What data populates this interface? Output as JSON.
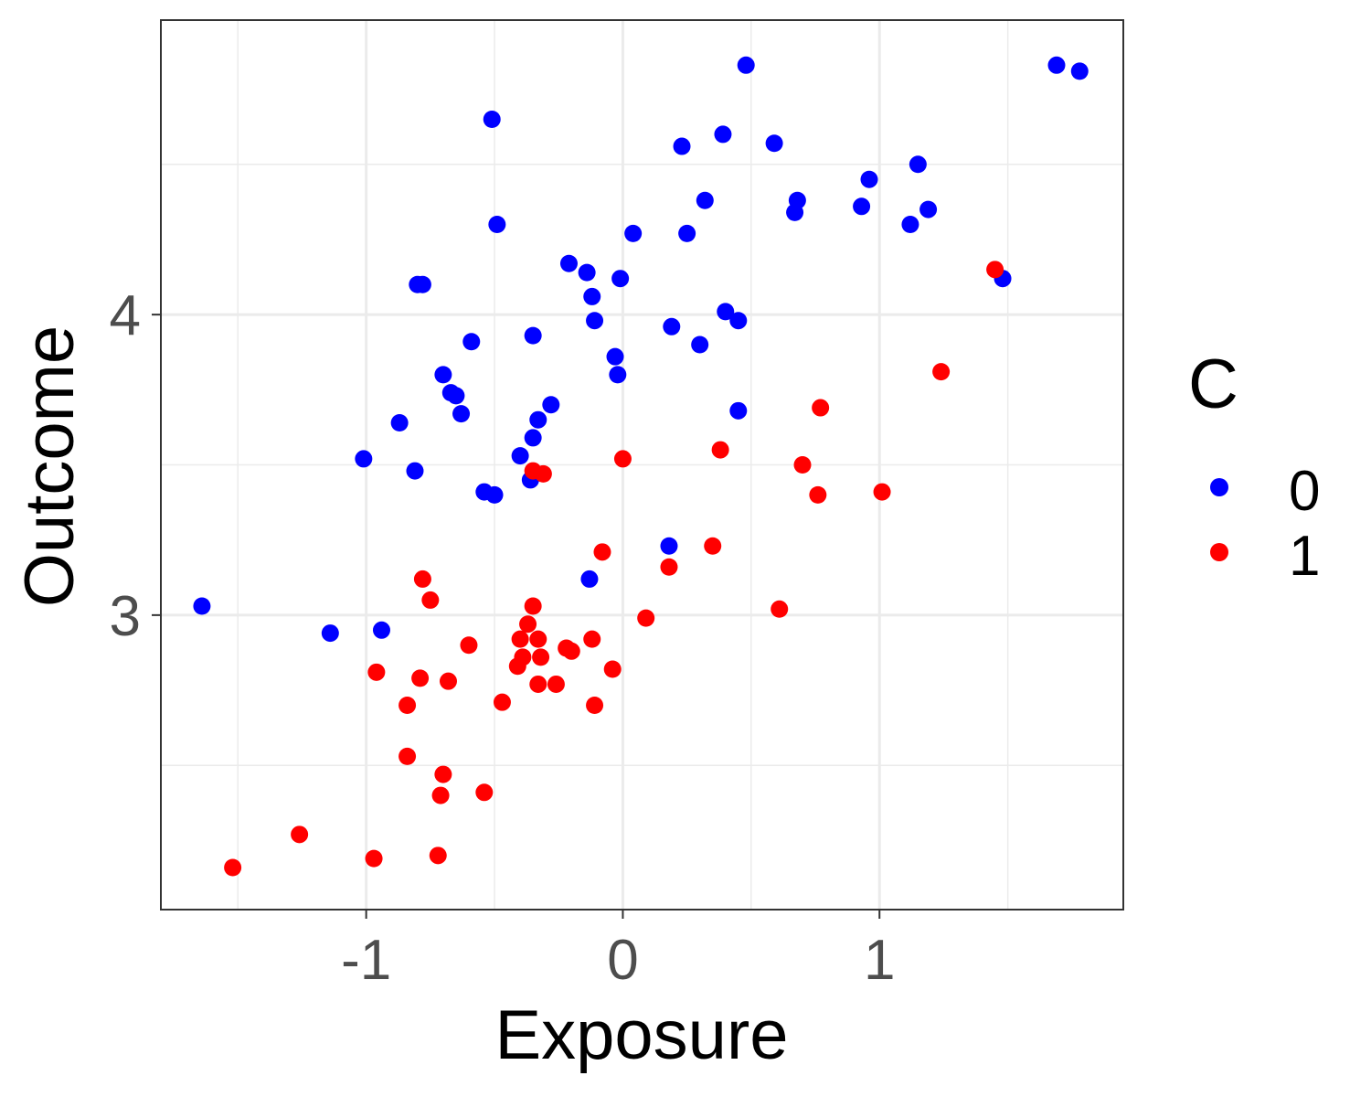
{
  "chart_data": {
    "type": "scatter",
    "xlabel": "Exposure",
    "ylabel": "Outcome",
    "xlim": [
      -1.8,
      1.95
    ],
    "ylim": [
      2.02,
      4.98
    ],
    "x_ticks": [
      -1,
      0,
      1
    ],
    "x_tick_labels": [
      "-1",
      "0",
      "1"
    ],
    "y_ticks": [
      3,
      4
    ],
    "y_tick_labels": [
      "3",
      "4"
    ],
    "grid": true,
    "legend": {
      "title": "C",
      "placement": "right"
    },
    "series": [
      {
        "name": "0",
        "color": "#0000ff",
        "points": [
          [
            0.48,
            4.83
          ],
          [
            1.69,
            4.83
          ],
          [
            1.78,
            4.81
          ],
          [
            -0.51,
            4.65
          ],
          [
            0.39,
            4.6
          ],
          [
            0.59,
            4.57
          ],
          [
            0.23,
            4.56
          ],
          [
            1.15,
            4.5
          ],
          [
            0.96,
            4.45
          ],
          [
            0.32,
            4.38
          ],
          [
            0.68,
            4.38
          ],
          [
            0.93,
            4.36
          ],
          [
            1.19,
            4.35
          ],
          [
            0.67,
            4.34
          ],
          [
            -0.49,
            4.3
          ],
          [
            1.12,
            4.3
          ],
          [
            0.04,
            4.27
          ],
          [
            0.25,
            4.27
          ],
          [
            -0.21,
            4.17
          ],
          [
            -0.14,
            4.14
          ],
          [
            -0.01,
            4.12
          ],
          [
            1.48,
            4.12
          ],
          [
            -0.8,
            4.1
          ],
          [
            -0.78,
            4.1
          ],
          [
            -0.12,
            4.06
          ],
          [
            0.4,
            4.01
          ],
          [
            0.45,
            3.98
          ],
          [
            -0.11,
            3.98
          ],
          [
            0.19,
            3.96
          ],
          [
            -0.35,
            3.93
          ],
          [
            -0.59,
            3.91
          ],
          [
            0.3,
            3.9
          ],
          [
            -0.03,
            3.86
          ],
          [
            -0.02,
            3.8
          ],
          [
            -0.7,
            3.8
          ],
          [
            -0.67,
            3.74
          ],
          [
            -0.65,
            3.73
          ],
          [
            -0.28,
            3.7
          ],
          [
            -0.63,
            3.67
          ],
          [
            0.45,
            3.68
          ],
          [
            -0.87,
            3.64
          ],
          [
            -0.33,
            3.65
          ],
          [
            -0.35,
            3.59
          ],
          [
            -1.01,
            3.52
          ],
          [
            -0.4,
            3.53
          ],
          [
            -0.81,
            3.48
          ],
          [
            -0.36,
            3.45
          ],
          [
            -0.54,
            3.41
          ],
          [
            -0.5,
            3.4
          ],
          [
            0.18,
            3.23
          ],
          [
            -0.13,
            3.12
          ],
          [
            -1.64,
            3.03
          ],
          [
            -1.14,
            2.94
          ],
          [
            -0.94,
            2.95
          ]
        ]
      },
      {
        "name": "1",
        "color": "#ff0000",
        "points": [
          [
            1.45,
            4.15
          ],
          [
            1.24,
            3.81
          ],
          [
            0.77,
            3.69
          ],
          [
            0.38,
            3.55
          ],
          [
            0.0,
            3.52
          ],
          [
            0.7,
            3.5
          ],
          [
            -0.35,
            3.48
          ],
          [
            -0.31,
            3.47
          ],
          [
            1.01,
            3.41
          ],
          [
            0.76,
            3.4
          ],
          [
            -0.08,
            3.21
          ],
          [
            0.35,
            3.23
          ],
          [
            0.18,
            3.16
          ],
          [
            -0.78,
            3.12
          ],
          [
            -0.75,
            3.05
          ],
          [
            -0.35,
            3.03
          ],
          [
            0.61,
            3.02
          ],
          [
            0.09,
            2.99
          ],
          [
            -0.37,
            2.97
          ],
          [
            -0.4,
            2.92
          ],
          [
            -0.33,
            2.92
          ],
          [
            -0.12,
            2.92
          ],
          [
            -0.6,
            2.9
          ],
          [
            -0.22,
            2.89
          ],
          [
            -0.2,
            2.88
          ],
          [
            -0.39,
            2.86
          ],
          [
            -0.32,
            2.86
          ],
          [
            -0.41,
            2.83
          ],
          [
            -0.04,
            2.82
          ],
          [
            -0.96,
            2.81
          ],
          [
            -0.79,
            2.79
          ],
          [
            -0.68,
            2.78
          ],
          [
            -0.33,
            2.77
          ],
          [
            -0.26,
            2.77
          ],
          [
            -0.47,
            2.71
          ],
          [
            -0.84,
            2.7
          ],
          [
            -0.11,
            2.7
          ],
          [
            -0.84,
            2.53
          ],
          [
            -0.7,
            2.47
          ],
          [
            -0.54,
            2.41
          ],
          [
            -0.71,
            2.4
          ],
          [
            -1.26,
            2.27
          ],
          [
            -0.72,
            2.2
          ],
          [
            -0.97,
            2.19
          ],
          [
            -1.52,
            2.16
          ]
        ]
      }
    ]
  }
}
